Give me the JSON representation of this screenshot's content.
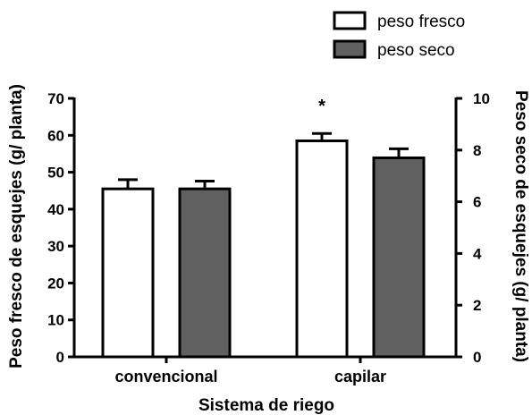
{
  "chart_data": {
    "type": "bar",
    "categories": [
      "convencional",
      "capilar"
    ],
    "series": [
      {
        "name": "peso fresco",
        "axis": "left",
        "values": [
          45.5,
          58.5
        ],
        "errors": [
          2.5,
          2.0
        ],
        "color": "#ffffff"
      },
      {
        "name": "peso seco",
        "axis": "right",
        "values": [
          6.5,
          7.7
        ],
        "errors": [
          0.3,
          0.35
        ],
        "color": "#606060"
      }
    ],
    "xlabel": "Sistema de riego",
    "ylabel": "Peso fresco de esquejes (g/ planta)",
    "y2label": "Peso seco de esquejes (g/ planta)",
    "ylim": [
      0,
      70
    ],
    "y2lim": [
      0,
      10
    ],
    "yticks": [
      "0",
      "10",
      "20",
      "30",
      "40",
      "50",
      "60",
      "70"
    ],
    "y2ticks": [
      "0",
      "2",
      "4",
      "6",
      "8",
      "10"
    ],
    "annotations": [
      {
        "text": "*",
        "category": "capilar"
      }
    ],
    "legend_position": "top-right",
    "grid": false
  }
}
